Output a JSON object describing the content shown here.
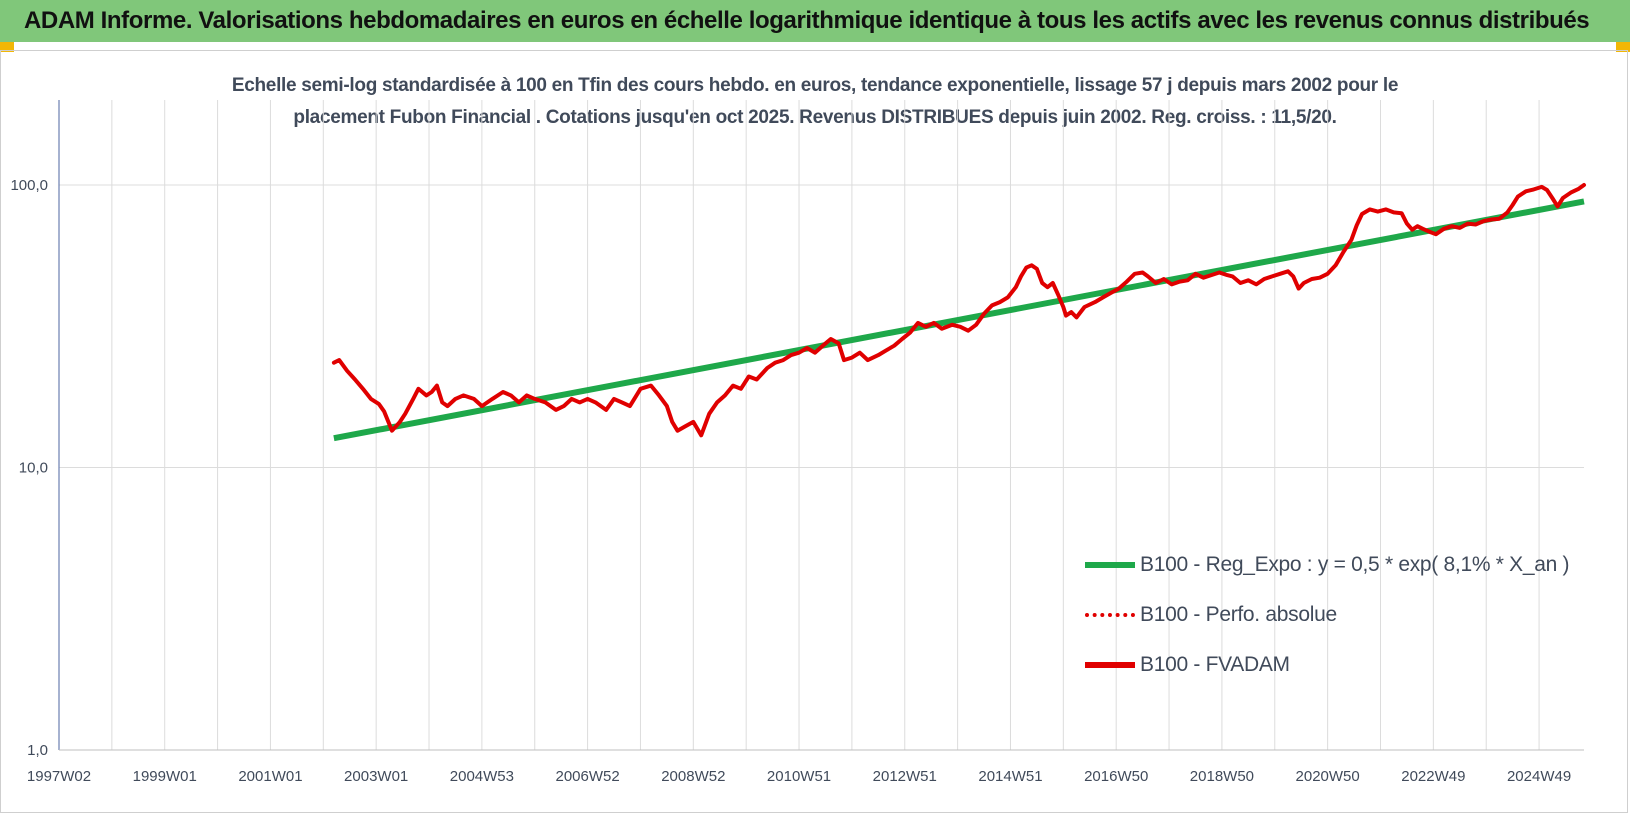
{
  "banner": {
    "title": "ADAM Informe. Valorisations hebdomadaires en euros en échelle logarithmique identique à tous les actifs avec les revenus connus distribués"
  },
  "colors": {
    "banner_bg": "#80c77a",
    "corner_marks": "#f2b705",
    "trend_line": "#1ea84a",
    "price_line": "#e00000",
    "grid": "#dcdcdc",
    "axis": "#6b7fb0",
    "text": "#404a5a"
  },
  "chart_data": {
    "type": "line",
    "title_lines": [
      "Echelle semi-log standardisée à 100 en Tfin des cours hebdo. en euros, tendance exponentielle, lissage 57 j depuis mars 2002 pour le",
      "placement Fubon Financial . Cotations jusqu'en oct 2025. Revenus DISTRIBUES depuis juin 2002. Reg. croiss. : 11,5/20."
    ],
    "y_scale": "log",
    "ylim": [
      1,
      200
    ],
    "xlim": [
      1997.0,
      2025.85
    ],
    "y_ticks": [
      {
        "value": 1,
        "label": "1,0"
      },
      {
        "value": 10,
        "label": "10,0"
      },
      {
        "value": 100,
        "label": "100,0"
      }
    ],
    "x_ticks": [
      {
        "year": 1997.0,
        "label": "1997W02"
      },
      {
        "year": 1999.0,
        "label": "1999W01"
      },
      {
        "year": 2001.0,
        "label": "2001W01"
      },
      {
        "year": 2003.0,
        "label": "2003W01"
      },
      {
        "year": 2005.0,
        "label": "2004W53"
      },
      {
        "year": 2007.0,
        "label": "2006W52"
      },
      {
        "year": 2009.0,
        "label": "2008W52"
      },
      {
        "year": 2011.0,
        "label": "2010W51"
      },
      {
        "year": 2013.0,
        "label": "2012W51"
      },
      {
        "year": 2015.0,
        "label": "2014W51"
      },
      {
        "year": 2017.0,
        "label": "2016W50"
      },
      {
        "year": 2019.0,
        "label": "2018W50"
      },
      {
        "year": 2021.0,
        "label": "2020W50"
      },
      {
        "year": 2023.0,
        "label": "2022W49"
      },
      {
        "year": 2025.0,
        "label": "2024W49"
      }
    ],
    "grid": true,
    "legend_position": "bottom-right",
    "legend": [
      {
        "label": "B100 - Reg_Expo : y = 0,5 * exp( 8,1% *  X_an )",
        "style": "solid",
        "color": "#1ea84a"
      },
      {
        "label": "B100 - Perfo. absolue",
        "style": "dotted",
        "color": "#e00000"
      },
      {
        "label": "B100 - FVADAM",
        "style": "solid",
        "color": "#e00000"
      }
    ],
    "series": [
      {
        "name": "B100 - Reg_Expo : y = 0,5 * exp( 8,1% *  X_an )",
        "points": [
          [
            2002.2,
            12.7
          ],
          [
            2025.85,
            87.5
          ]
        ]
      },
      {
        "name": "B100 - FVADAM",
        "points": [
          [
            2002.2,
            23.5
          ],
          [
            2002.3,
            24.0
          ],
          [
            2002.45,
            22.0
          ],
          [
            2002.6,
            20.5
          ],
          [
            2002.75,
            19.0
          ],
          [
            2002.9,
            17.5
          ],
          [
            2003.05,
            16.8
          ],
          [
            2003.15,
            15.8
          ],
          [
            2003.3,
            13.5
          ],
          [
            2003.45,
            14.5
          ],
          [
            2003.55,
            15.5
          ],
          [
            2003.7,
            17.5
          ],
          [
            2003.8,
            19.0
          ],
          [
            2003.95,
            18.0
          ],
          [
            2004.05,
            18.5
          ],
          [
            2004.15,
            19.5
          ],
          [
            2004.25,
            17.0
          ],
          [
            2004.35,
            16.5
          ],
          [
            2004.5,
            17.5
          ],
          [
            2004.65,
            18.0
          ],
          [
            2004.85,
            17.5
          ],
          [
            2005.0,
            16.5
          ],
          [
            2005.2,
            17.5
          ],
          [
            2005.4,
            18.5
          ],
          [
            2005.55,
            18.0
          ],
          [
            2005.7,
            17.0
          ],
          [
            2005.85,
            18.0
          ],
          [
            2006.0,
            17.5
          ],
          [
            2006.2,
            17.0
          ],
          [
            2006.4,
            16.0
          ],
          [
            2006.55,
            16.5
          ],
          [
            2006.7,
            17.5
          ],
          [
            2006.85,
            17.0
          ],
          [
            2007.0,
            17.5
          ],
          [
            2007.15,
            17.0
          ],
          [
            2007.35,
            16.0
          ],
          [
            2007.5,
            17.5
          ],
          [
            2007.65,
            17.0
          ],
          [
            2007.8,
            16.5
          ],
          [
            2008.0,
            19.0
          ],
          [
            2008.2,
            19.5
          ],
          [
            2008.35,
            18.0
          ],
          [
            2008.5,
            16.5
          ],
          [
            2008.6,
            14.5
          ],
          [
            2008.7,
            13.5
          ],
          [
            2008.85,
            14.0
          ],
          [
            2009.0,
            14.5
          ],
          [
            2009.15,
            13.0
          ],
          [
            2009.3,
            15.5
          ],
          [
            2009.45,
            17.0
          ],
          [
            2009.6,
            18.0
          ],
          [
            2009.75,
            19.5
          ],
          [
            2009.9,
            19.0
          ],
          [
            2010.05,
            21.0
          ],
          [
            2010.2,
            20.5
          ],
          [
            2010.4,
            22.5
          ],
          [
            2010.55,
            23.5
          ],
          [
            2010.7,
            24.0
          ],
          [
            2010.85,
            25.0
          ],
          [
            2011.0,
            25.5
          ],
          [
            2011.15,
            26.5
          ],
          [
            2011.3,
            25.5
          ],
          [
            2011.45,
            27.0
          ],
          [
            2011.6,
            28.5
          ],
          [
            2011.75,
            27.5
          ],
          [
            2011.85,
            24.0
          ],
          [
            2012.0,
            24.5
          ],
          [
            2012.15,
            25.5
          ],
          [
            2012.3,
            24.0
          ],
          [
            2012.5,
            25.0
          ],
          [
            2012.65,
            26.0
          ],
          [
            2012.8,
            27.0
          ],
          [
            2012.95,
            28.5
          ],
          [
            2013.1,
            30.0
          ],
          [
            2013.25,
            32.5
          ],
          [
            2013.4,
            31.5
          ],
          [
            2013.55,
            32.5
          ],
          [
            2013.7,
            31.0
          ],
          [
            2013.9,
            32.0
          ],
          [
            2014.05,
            31.5
          ],
          [
            2014.2,
            30.5
          ],
          [
            2014.35,
            32.0
          ],
          [
            2014.5,
            35.0
          ],
          [
            2014.65,
            37.5
          ],
          [
            2014.8,
            38.5
          ],
          [
            2014.95,
            40.0
          ],
          [
            2015.1,
            43.5
          ],
          [
            2015.2,
            47.5
          ],
          [
            2015.3,
            51.0
          ],
          [
            2015.4,
            52.0
          ],
          [
            2015.5,
            50.5
          ],
          [
            2015.6,
            45.0
          ],
          [
            2015.7,
            43.5
          ],
          [
            2015.8,
            45.0
          ],
          [
            2015.9,
            41.0
          ],
          [
            2016.0,
            37.0
          ],
          [
            2016.05,
            34.5
          ],
          [
            2016.15,
            35.5
          ],
          [
            2016.25,
            34.0
          ],
          [
            2016.4,
            37.0
          ],
          [
            2016.6,
            38.5
          ],
          [
            2016.75,
            40.0
          ],
          [
            2016.9,
            41.5
          ],
          [
            2017.05,
            43.0
          ],
          [
            2017.2,
            45.5
          ],
          [
            2017.35,
            48.5
          ],
          [
            2017.5,
            49.0
          ],
          [
            2017.6,
            47.5
          ],
          [
            2017.75,
            45.0
          ],
          [
            2017.9,
            46.5
          ],
          [
            2018.05,
            44.5
          ],
          [
            2018.2,
            45.5
          ],
          [
            2018.35,
            46.0
          ],
          [
            2018.5,
            48.5
          ],
          [
            2018.65,
            47.0
          ],
          [
            2018.8,
            48.0
          ],
          [
            2018.95,
            49.0
          ],
          [
            2019.1,
            48.0
          ],
          [
            2019.2,
            47.5
          ],
          [
            2019.35,
            45.0
          ],
          [
            2019.5,
            46.0
          ],
          [
            2019.65,
            44.5
          ],
          [
            2019.8,
            46.5
          ],
          [
            2019.95,
            47.5
          ],
          [
            2020.1,
            48.5
          ],
          [
            2020.25,
            49.5
          ],
          [
            2020.35,
            47.5
          ],
          [
            2020.45,
            43.0
          ],
          [
            2020.55,
            45.0
          ],
          [
            2020.7,
            46.5
          ],
          [
            2020.85,
            47.0
          ],
          [
            2021.0,
            48.5
          ],
          [
            2021.15,
            52.0
          ],
          [
            2021.3,
            58.0
          ],
          [
            2021.45,
            64.0
          ],
          [
            2021.55,
            72.0
          ],
          [
            2021.65,
            79.0
          ],
          [
            2021.8,
            82.0
          ],
          [
            2021.95,
            80.5
          ],
          [
            2022.1,
            82.0
          ],
          [
            2022.25,
            80.0
          ],
          [
            2022.4,
            79.5
          ],
          [
            2022.5,
            73.0
          ],
          [
            2022.6,
            69.5
          ],
          [
            2022.7,
            71.5
          ],
          [
            2022.8,
            70.0
          ],
          [
            2022.95,
            68.0
          ],
          [
            2023.05,
            67.0
          ],
          [
            2023.2,
            70.0
          ],
          [
            2023.35,
            71.5
          ],
          [
            2023.5,
            70.5
          ],
          [
            2023.65,
            73.0
          ],
          [
            2023.8,
            72.5
          ],
          [
            2023.95,
            74.5
          ],
          [
            2024.1,
            75.5
          ],
          [
            2024.25,
            76.0
          ],
          [
            2024.4,
            80.0
          ],
          [
            2024.5,
            85.0
          ],
          [
            2024.6,
            91.0
          ],
          [
            2024.75,
            95.0
          ],
          [
            2024.9,
            96.5
          ],
          [
            2025.05,
            98.5
          ],
          [
            2025.15,
            96.0
          ],
          [
            2025.25,
            90.0
          ],
          [
            2025.35,
            84.0
          ],
          [
            2025.45,
            90.0
          ],
          [
            2025.6,
            94.0
          ],
          [
            2025.75,
            97.0
          ],
          [
            2025.85,
            100.0
          ]
        ]
      }
    ]
  }
}
